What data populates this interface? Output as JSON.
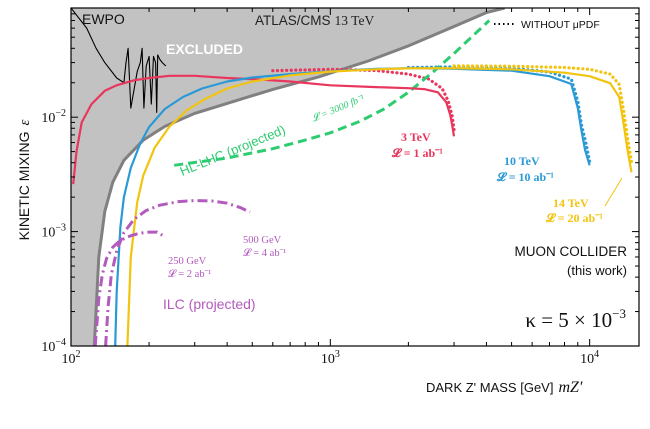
{
  "chart_data": {
    "type": "line",
    "title": "",
    "xlabel": "DARK Z' MASS [GeV]",
    "xlabel_symbol": "mZ'",
    "ylabel": "KINETIC MIXING",
    "ylabel_symbol": "ε",
    "x_scale": "log",
    "y_scale": "log",
    "xlim": [
      100,
      15500
    ],
    "ylim": [
      0.0001,
      0.09
    ],
    "x_ticks": [
      {
        "value": 100,
        "base": "10",
        "exp": "2"
      },
      {
        "value": 1000,
        "base": "10",
        "exp": "3"
      },
      {
        "value": 10000,
        "base": "10",
        "exp": "4"
      }
    ],
    "y_ticks": [
      {
        "value": 0.0001,
        "base": "10",
        "exp": "−4"
      },
      {
        "value": 0.001,
        "base": "10",
        "exp": "−3"
      },
      {
        "value": 0.01,
        "base": "10",
        "exp": "−2"
      }
    ],
    "legend": {
      "label": "WITHOUT μPDF",
      "style": "dotted",
      "position": "top-right"
    },
    "colors": {
      "excluded_fill": "#c2c2c2",
      "excluded_edge": "#808080",
      "ewpo": "#000000",
      "hllhc": "#2ecc71",
      "tev3": "#e8365d",
      "tev10": "#2a9ad6",
      "tev14": "#f2c40f",
      "ilc": "#b35abe"
    },
    "excluded_region": {
      "label": "EXCLUDED",
      "lower_boundary": {
        "x": [
          123,
          128,
          135,
          145,
          160,
          190,
          230,
          300,
          400,
          600,
          900,
          1400,
          2000,
          3000,
          4000,
          4700
        ],
        "y": [
          0.0001,
          0.0006,
          0.0015,
          0.0027,
          0.0042,
          0.0063,
          0.0083,
          0.0108,
          0.0132,
          0.0175,
          0.0225,
          0.031,
          0.042,
          0.062,
          0.082,
          0.09
        ]
      }
    },
    "texts": {
      "ewpo": "EWPO",
      "atlas": "ATLAS/CMS",
      "atlas_energy": "13 TeV",
      "hllhc": "HL-LHC (projected)",
      "hllhc_lumi": "𝓛 = 3000 fb⁻¹",
      "ilc": "ILC (projected)",
      "muon_1": "MUON COLLIDER",
      "muon_2": "(this work)",
      "kappa_1": "κ = 5 × 10",
      "kappa_exp": "−3"
    },
    "series": [
      {
        "name": "EWPO",
        "x": [
          100,
          115,
          125,
          135,
          150,
          160,
          163,
          166,
          170,
          180,
          185,
          188,
          191,
          195,
          200,
          204,
          208,
          212,
          214,
          216,
          220,
          225,
          232
        ],
        "y": [
          0.09,
          0.06,
          0.04,
          0.03,
          0.022,
          0.02,
          0.03,
          0.04,
          0.012,
          0.025,
          0.03,
          0.04,
          0.012,
          0.028,
          0.034,
          0.013,
          0.034,
          0.03,
          0.011,
          0.035,
          0.032,
          0.03,
          0.028
        ]
      },
      {
        "name": "HL-LHC (projected)",
        "style": "dashed",
        "x": [
          250,
          400,
          600,
          800,
          1000,
          1300,
          1600,
          2000,
          2500,
          3000,
          3500,
          4100
        ],
        "y": [
          0.0038,
          0.0044,
          0.0053,
          0.0063,
          0.0073,
          0.0092,
          0.0117,
          0.0165,
          0.025,
          0.036,
          0.05,
          0.07
        ]
      },
      {
        "label_energy": "3 TeV",
        "label_lumi": "𝓛 = 1 ab⁻¹",
        "x": [
          102,
          105,
          110,
          120,
          135,
          150,
          175,
          200,
          240,
          300,
          400,
          500,
          700,
          1000,
          1500,
          2000,
          2300,
          2600,
          2800,
          2900,
          2950,
          3000
        ],
        "y": [
          0.0026,
          0.005,
          0.009,
          0.013,
          0.017,
          0.019,
          0.021,
          0.022,
          0.023,
          0.023,
          0.022,
          0.0215,
          0.0205,
          0.019,
          0.0183,
          0.0179,
          0.0176,
          0.0165,
          0.0135,
          0.0105,
          0.0085,
          0.0068
        ]
      },
      {
        "label_energy": "10 TeV",
        "label_lumi": "𝓛 = 10 ab⁻¹",
        "x": [
          148,
          150,
          155,
          160,
          170,
          185,
          200,
          230,
          270,
          320,
          400,
          500,
          700,
          1000,
          1500,
          2000,
          3000,
          5000,
          7000,
          8500,
          9000,
          9300,
          9600,
          10000
        ],
        "y": [
          0.0001,
          0.0003,
          0.0011,
          0.002,
          0.0036,
          0.0059,
          0.0082,
          0.0118,
          0.015,
          0.0178,
          0.0205,
          0.0222,
          0.0238,
          0.0252,
          0.0264,
          0.0268,
          0.0265,
          0.0255,
          0.0228,
          0.0195,
          0.012,
          0.0076,
          0.0052,
          0.0038
        ]
      },
      {
        "label_energy": "14 TeV",
        "label_lumi": "𝓛 = 20 ab⁻¹",
        "x": [
          165,
          170,
          180,
          190,
          210,
          240,
          280,
          330,
          400,
          500,
          700,
          1000,
          1500,
          2000,
          3000,
          5000,
          8000,
          10000,
          12000,
          13000,
          13500,
          14000,
          14500
        ],
        "y": [
          0.0001,
          0.0006,
          0.0018,
          0.0031,
          0.0054,
          0.0083,
          0.0115,
          0.0145,
          0.0178,
          0.0205,
          0.0232,
          0.025,
          0.0262,
          0.0267,
          0.0268,
          0.0262,
          0.0245,
          0.0228,
          0.0198,
          0.015,
          0.009,
          0.0052,
          0.0033
        ]
      },
      {
        "label_energy": "250 GeV",
        "label_lumi": "𝓛 = 2 ab⁻¹",
        "style": "dashdot",
        "x": [
          124,
          126,
          128,
          132,
          137,
          145,
          155,
          170,
          185,
          200,
          215,
          225
        ],
        "y": [
          0.0001,
          0.00016,
          0.00026,
          0.00042,
          0.00058,
          0.00073,
          0.00084,
          0.00092,
          0.00097,
          0.00099,
          0.00099,
          0.00093
        ]
      },
      {
        "label_energy": "500 GeV",
        "label_lumi": "𝓛 = 4 ab⁻¹",
        "style": "dashdot",
        "x": [
          136,
          139,
          143,
          150,
          160,
          175,
          195,
          220,
          260,
          300,
          350,
          400,
          450,
          490
        ],
        "y": [
          0.0001,
          0.00022,
          0.00042,
          0.00068,
          0.00098,
          0.00128,
          0.00153,
          0.0017,
          0.00183,
          0.00187,
          0.00185,
          0.00177,
          0.00162,
          0.00148
        ]
      }
    ],
    "no_mupdf_series": [
      {
        "x": [
          600,
          1000,
          1500,
          2000,
          2400,
          2700,
          2850,
          2950,
          3000
        ],
        "y": [
          0.0255,
          0.0262,
          0.0256,
          0.0238,
          0.0215,
          0.0178,
          0.0138,
          0.0102,
          0.0078
        ]
      },
      {
        "x": [
          2000,
          3000,
          5000,
          7000,
          8500,
          9000,
          9300,
          9700,
          10000
        ],
        "y": [
          0.0272,
          0.0275,
          0.0268,
          0.0248,
          0.0215,
          0.0138,
          0.0086,
          0.0058,
          0.0041
        ]
      },
      {
        "x": [
          3000,
          5000,
          8000,
          10000,
          12000,
          13000,
          13500,
          14000,
          14500
        ],
        "y": [
          0.0281,
          0.0279,
          0.0272,
          0.0262,
          0.0238,
          0.0193,
          0.0118,
          0.0066,
          0.0041
        ]
      }
    ]
  }
}
